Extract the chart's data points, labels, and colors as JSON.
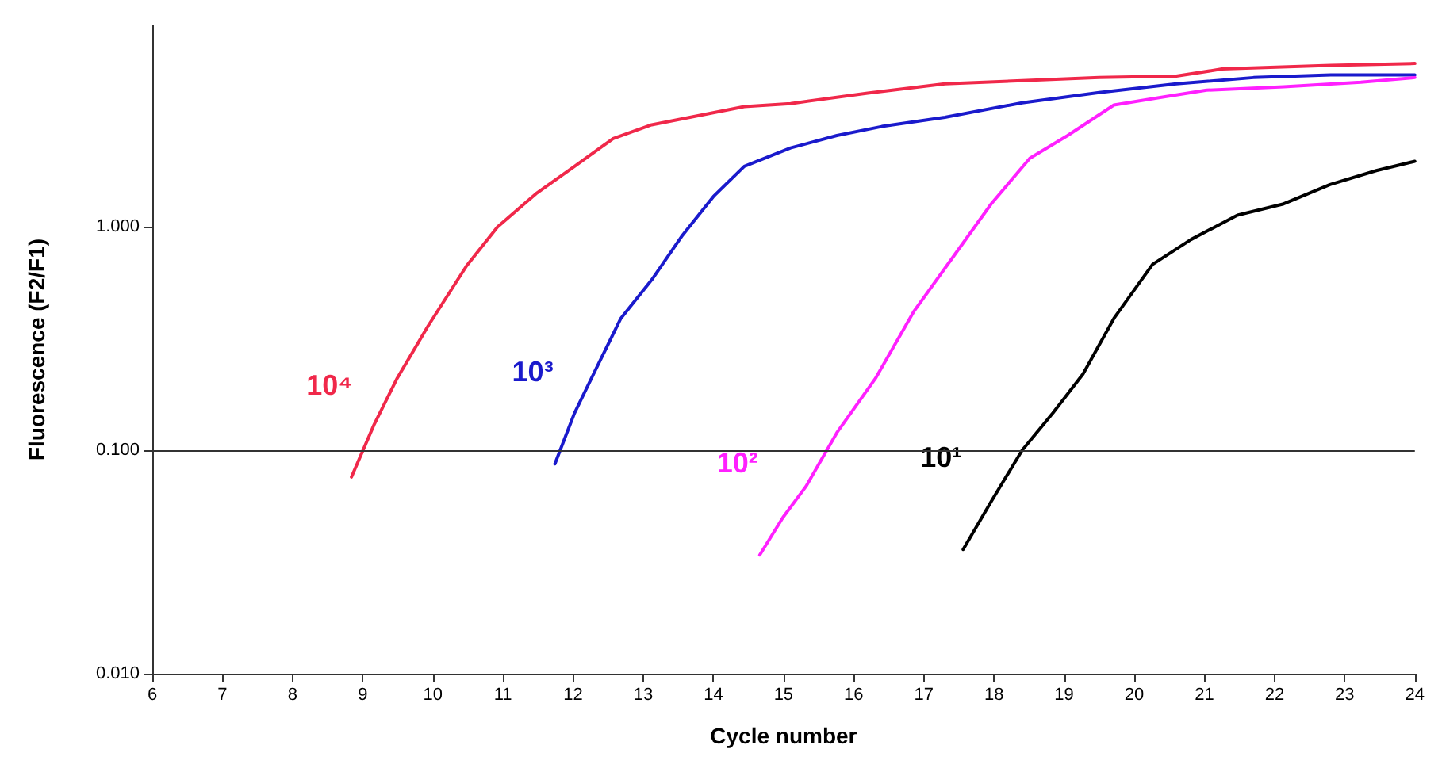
{
  "chart_data": {
    "type": "line",
    "xlabel": "Cycle number",
    "ylabel": "Fluorescence (F2/F1)",
    "log": "y",
    "grid": false,
    "legend": false,
    "marker": "none",
    "line_style": "solid",
    "xlim": [
      6,
      24
    ],
    "xticks": [
      6,
      7,
      8,
      9,
      10,
      11,
      12,
      13,
      14,
      15,
      16,
      17,
      18,
      19,
      20,
      21,
      22,
      23,
      24
    ],
    "ylim": [
      0.01,
      8
    ],
    "yticks": [
      {
        "value": 0.01,
        "label": "0.010"
      },
      {
        "value": 0.1,
        "label": "0.100"
      },
      {
        "value": 1,
        "label": "1.000"
      }
    ],
    "ref_lines": [
      {
        "axis": "y",
        "value": 0.1,
        "color": "#333333"
      }
    ],
    "series": [
      {
        "name": "10⁴",
        "color": "#f0284a",
        "x": [
          8.84,
          9.16,
          9.49,
          9.93,
          10.48,
          10.92,
          11.47,
          12.02,
          12.57,
          13.12,
          13.78,
          14.44,
          15.1,
          16.2,
          17.3,
          18.4,
          19.5,
          20.6,
          21.25,
          22.8,
          24
        ],
        "values": [
          0.076,
          0.13,
          0.21,
          0.36,
          0.67,
          1.0,
          1.41,
          1.87,
          2.49,
          2.87,
          3.15,
          3.46,
          3.57,
          3.98,
          4.38,
          4.52,
          4.67,
          4.74,
          5.1,
          5.3,
          5.4
        ]
      },
      {
        "name": "10³",
        "color": "#1a1acc",
        "x": [
          11.74,
          12.02,
          12.35,
          12.68,
          13.12,
          13.56,
          14.0,
          14.44,
          15.1,
          15.76,
          16.4,
          17.3,
          18.4,
          19.5,
          20.6,
          21.7,
          22.8,
          24
        ],
        "values": [
          0.087,
          0.147,
          0.24,
          0.39,
          0.58,
          0.92,
          1.37,
          1.87,
          2.26,
          2.57,
          2.82,
          3.1,
          3.6,
          4.0,
          4.38,
          4.67,
          4.8,
          4.8
        ]
      },
      {
        "name": "10²",
        "color": "#ff20ff",
        "x": [
          14.66,
          14.99,
          15.32,
          15.76,
          16.31,
          16.86,
          17.41,
          17.96,
          18.51,
          19.05,
          19.71,
          20.37,
          21.03,
          22.13,
          23.23,
          24
        ],
        "values": [
          0.034,
          0.05,
          0.069,
          0.12,
          0.21,
          0.42,
          0.73,
          1.27,
          2.03,
          2.57,
          3.52,
          3.8,
          4.1,
          4.25,
          4.45,
          4.67
        ]
      },
      {
        "name": "10¹",
        "color": "#000000",
        "x": [
          17.56,
          17.96,
          18.4,
          18.84,
          19.27,
          19.71,
          20.26,
          20.81,
          21.47,
          22.13,
          22.79,
          23.45,
          24
        ],
        "values": [
          0.036,
          0.059,
          0.1,
          0.147,
          0.22,
          0.39,
          0.68,
          0.88,
          1.13,
          1.27,
          1.55,
          1.79,
          1.97
        ]
      }
    ]
  }
}
